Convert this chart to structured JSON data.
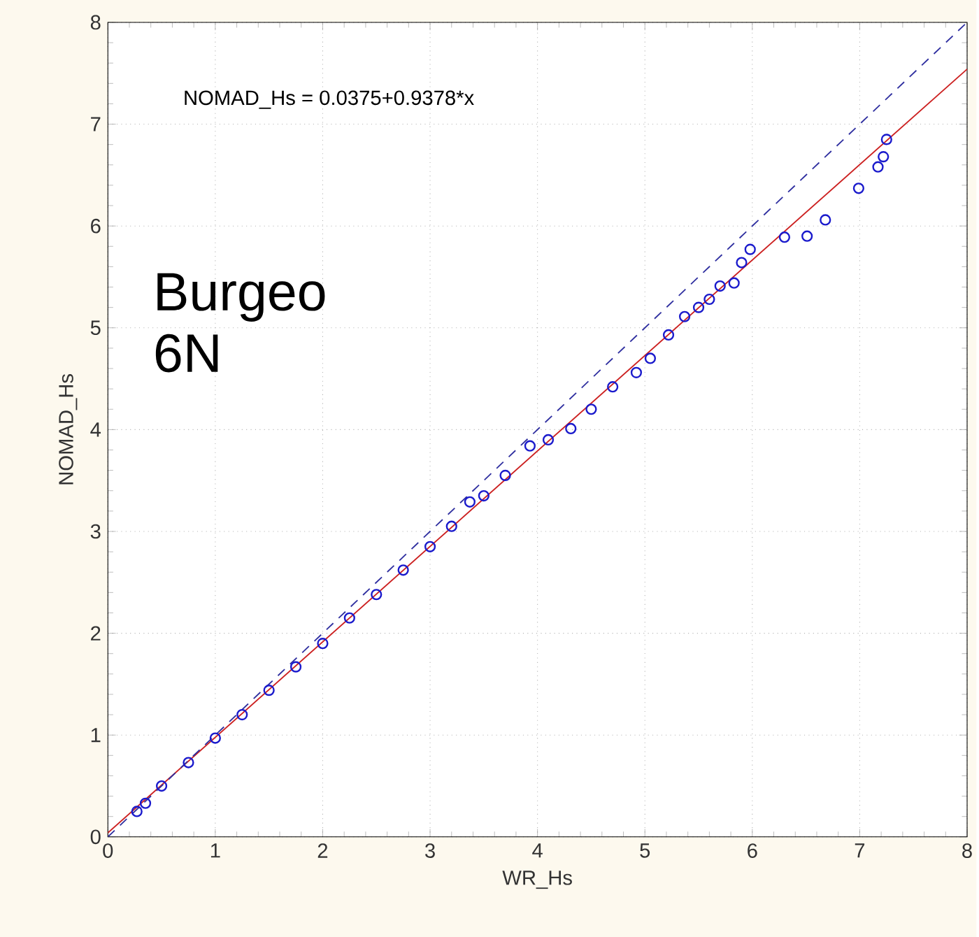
{
  "chart_data": {
    "type": "scatter",
    "xlabel": "WR_Hs",
    "ylabel": "NOMAD_Hs",
    "annotations": [
      "NOMAD_Hs = 0.0375+0.9378*x",
      "Burgeo 6N"
    ],
    "xlim": [
      0,
      8
    ],
    "ylim": [
      0,
      8
    ],
    "xticks": [
      0,
      1,
      2,
      3,
      4,
      5,
      6,
      7,
      8
    ],
    "yticks": [
      0,
      1,
      2,
      3,
      4,
      5,
      6,
      7,
      8
    ],
    "grid": true,
    "marker": "circle",
    "series": [
      {
        "color": "#1a1acc",
        "x": [
          0.27,
          0.35,
          0.5,
          0.75,
          1.0,
          1.25,
          1.5,
          1.75,
          2.0,
          2.25,
          2.5,
          2.75,
          3.0,
          3.2,
          3.37,
          3.5,
          3.7,
          3.93,
          4.1,
          4.31,
          4.5,
          4.7,
          4.92,
          5.05,
          5.22,
          5.37,
          5.5,
          5.6,
          5.7,
          5.83,
          5.9,
          5.98,
          6.3,
          6.51,
          6.68,
          6.99,
          7.17,
          7.22,
          7.25
        ],
        "values": [
          0.25,
          0.33,
          0.5,
          0.73,
          0.97,
          1.2,
          1.44,
          1.67,
          1.9,
          2.15,
          2.38,
          2.62,
          2.85,
          3.05,
          3.29,
          3.35,
          3.55,
          3.84,
          3.9,
          4.01,
          4.2,
          4.42,
          4.56,
          4.7,
          4.93,
          5.11,
          5.2,
          5.28,
          5.41,
          5.44,
          5.64,
          5.77,
          5.89,
          5.9,
          6.06,
          6.37,
          6.58,
          6.68,
          6.85
        ]
      },
      {
        "type": "line",
        "color": "#cc2020",
        "marker": "none",
        "line_style": "solid",
        "x": [
          0,
          8
        ],
        "values": [
          0.04,
          7.54
        ]
      },
      {
        "type": "line",
        "color": "#3030a0",
        "marker": "none",
        "line_style": "dashed",
        "x": [
          0,
          8
        ],
        "values": [
          0,
          8
        ]
      }
    ]
  }
}
